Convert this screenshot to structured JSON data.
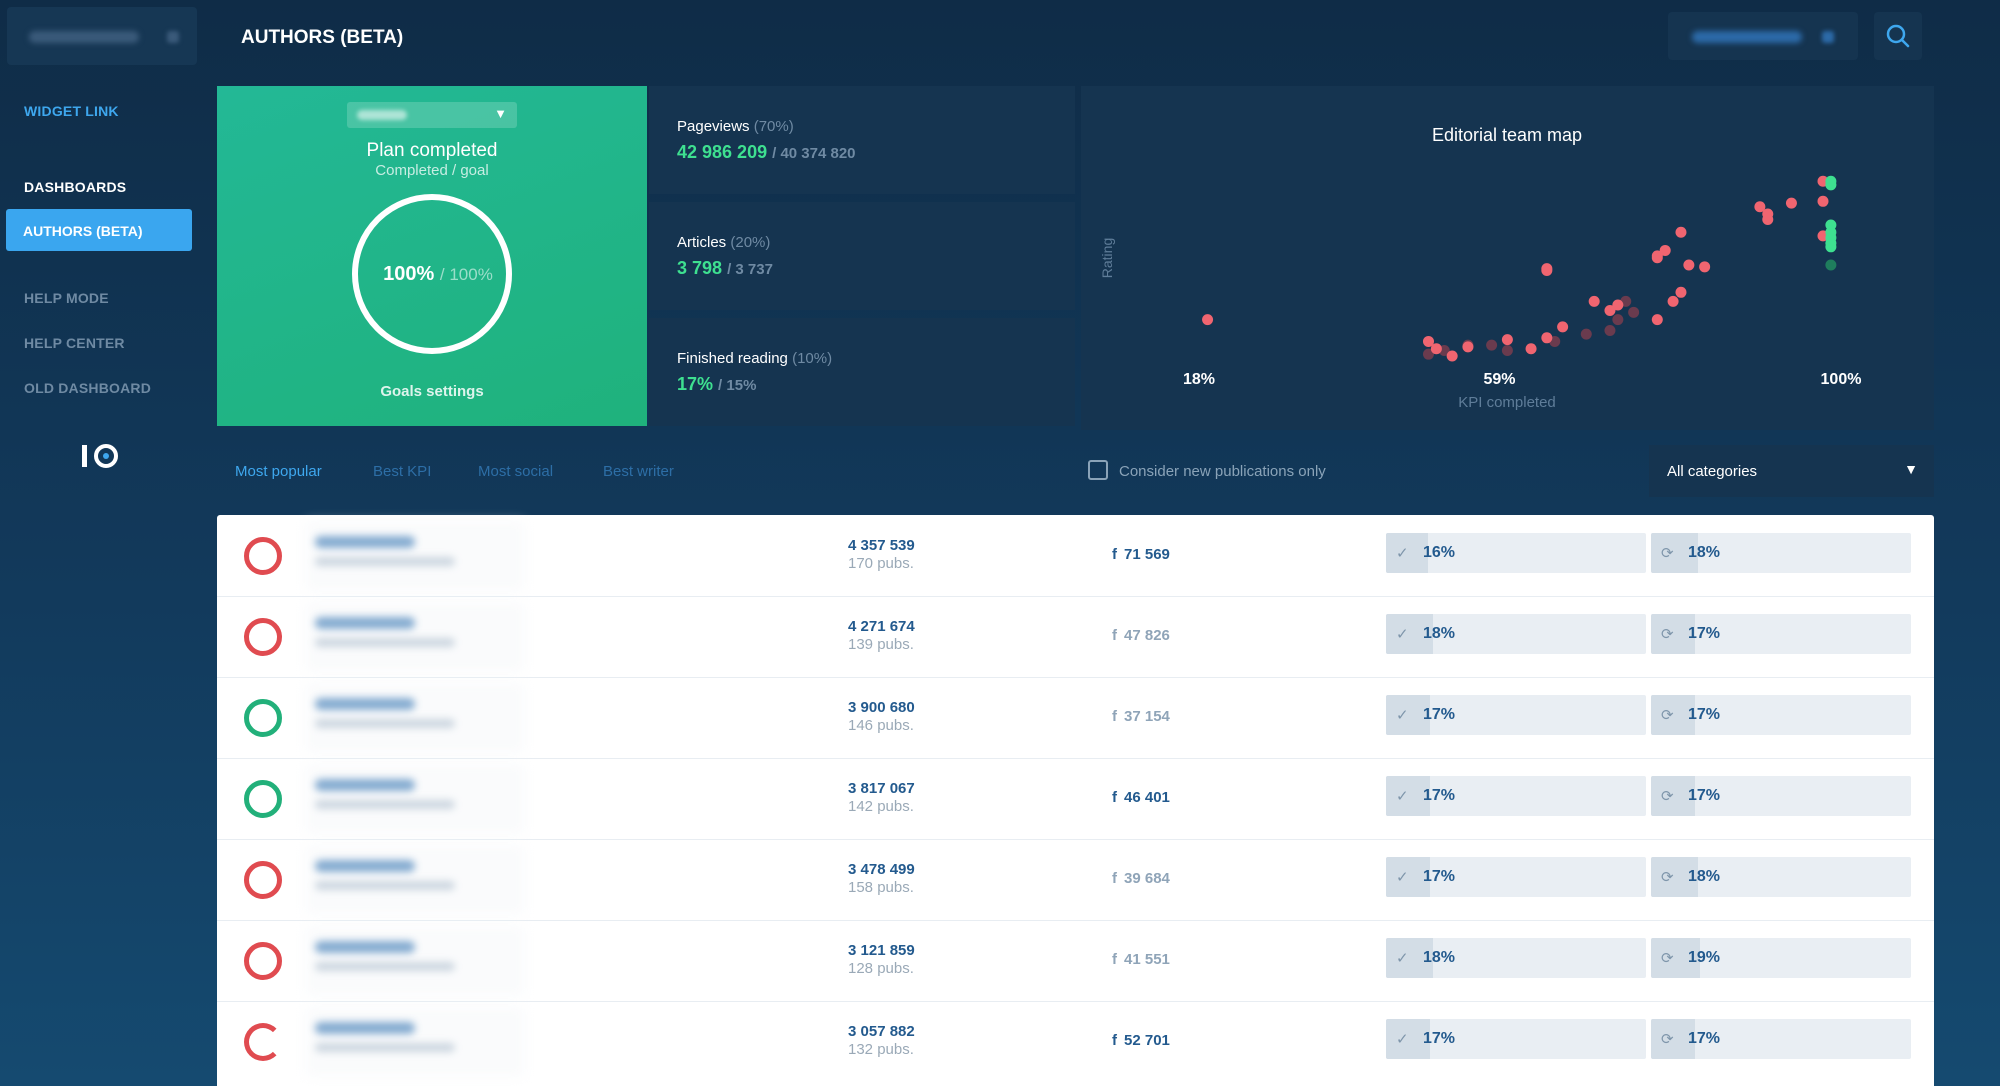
{
  "sidebar": {
    "widget_link": "WIDGET LINK",
    "dashboards": "DASHBOARDS",
    "active_item": "AUTHORS (BETA)",
    "help_mode": "HELP MODE",
    "help_center": "HELP CENTER",
    "old_dashboard": "OLD DASHBOARD",
    "logo_icon": "io-logo-icon"
  },
  "header": {
    "title": "AUTHORS (BETA)",
    "search_icon": "search-icon"
  },
  "plan": {
    "title": "Plan completed",
    "subtitle": "Completed / goal",
    "completed": "100%",
    "goal": "/ 100%",
    "completed_fraction": 1.0,
    "settings_link": "Goals settings"
  },
  "metrics": [
    {
      "label": "Pageviews",
      "weight": "(70%)",
      "value": "42 986 209",
      "goal": "/ 40 374 820"
    },
    {
      "label": "Articles",
      "weight": "(20%)",
      "value": "3 798",
      "goal": "/ 3 737"
    },
    {
      "label": "Finished reading",
      "weight": "(10%)",
      "value": "17%",
      "goal": "/ 15%"
    }
  ],
  "chart_data": {
    "type": "scatter",
    "title": "Editorial team map",
    "xlabel": "KPI completed",
    "ylabel": "Rating",
    "x_ticks": [
      "18%",
      "59%",
      "100%"
    ],
    "xlim": [
      18,
      100
    ],
    "ylim": [
      0,
      100
    ],
    "series": [
      {
        "color": "#f06570",
        "points": [
          [
            100,
            96
          ],
          [
            100,
            85
          ],
          [
            100,
            66
          ],
          [
            92,
            82
          ],
          [
            93,
            78
          ],
          [
            96,
            84
          ],
          [
            93,
            75
          ],
          [
            82,
            68
          ],
          [
            80,
            58
          ],
          [
            79,
            55
          ],
          [
            79,
            54
          ],
          [
            83,
            50
          ],
          [
            85,
            49
          ],
          [
            79,
            20
          ],
          [
            81,
            30
          ],
          [
            82,
            35
          ],
          [
            65,
            47
          ],
          [
            65,
            48
          ],
          [
            71,
            30
          ],
          [
            74,
            28
          ],
          [
            63,
            4
          ],
          [
            65,
            10
          ],
          [
            67,
            16
          ],
          [
            73,
            25
          ],
          [
            55,
            5
          ],
          [
            22,
            20
          ],
          [
            50,
            8
          ],
          [
            53,
            0
          ],
          [
            51,
            4
          ],
          [
            60,
            9
          ]
        ],
        "dim_points": [
          [
            50,
            1
          ],
          [
            52,
            3
          ],
          [
            55,
            6
          ],
          [
            60,
            3
          ],
          [
            58,
            6
          ],
          [
            66,
            8
          ],
          [
            70,
            12
          ],
          [
            73,
            14
          ],
          [
            74,
            20
          ],
          [
            76,
            24
          ],
          [
            75,
            30
          ]
        ]
      },
      {
        "color": "#3ee090",
        "points": [
          [
            101,
            96
          ],
          [
            101,
            94
          ],
          [
            101,
            72
          ],
          [
            101,
            68
          ],
          [
            101,
            65
          ],
          [
            101,
            62
          ],
          [
            101,
            60
          ]
        ],
        "dim_points": [
          [
            101,
            50
          ]
        ]
      }
    ]
  },
  "tabs": [
    "Most popular",
    "Best KPI",
    "Most social",
    "Best writer"
  ],
  "filter": {
    "checkbox_label": "Consider new publications only",
    "category": "All categories"
  },
  "table": {
    "rows": [
      {
        "status": "red",
        "pageviews": "4 357 539",
        "pubs": "170 pubs.",
        "facebook": "71 569",
        "fb_dim": false,
        "kpi": "16%",
        "kpi_value": 0.16,
        "read": "18%",
        "read_value": 0.18
      },
      {
        "status": "red",
        "pageviews": "4 271 674",
        "pubs": "139 pubs.",
        "facebook": "47 826",
        "fb_dim": true,
        "kpi": "18%",
        "kpi_value": 0.18,
        "read": "17%",
        "read_value": 0.17
      },
      {
        "status": "green",
        "pageviews": "3 900 680",
        "pubs": "146 pubs.",
        "facebook": "37 154",
        "fb_dim": true,
        "kpi": "17%",
        "kpi_value": 0.17,
        "read": "17%",
        "read_value": 0.17
      },
      {
        "status": "green",
        "pageviews": "3 817 067",
        "pubs": "142 pubs.",
        "facebook": "46 401",
        "fb_dim": false,
        "kpi": "17%",
        "kpi_value": 0.17,
        "read": "17%",
        "read_value": 0.17
      },
      {
        "status": "red",
        "pageviews": "3 478 499",
        "pubs": "158 pubs.",
        "facebook": "39 684",
        "fb_dim": true,
        "kpi": "17%",
        "kpi_value": 0.17,
        "read": "18%",
        "read_value": 0.18
      },
      {
        "status": "red",
        "pageviews": "3 121 859",
        "pubs": "128 pubs.",
        "facebook": "41 551",
        "fb_dim": true,
        "kpi": "18%",
        "kpi_value": 0.18,
        "read": "19%",
        "read_value": 0.19
      },
      {
        "status": "partial",
        "pageviews": "3 057 882",
        "pubs": "132 pubs.",
        "facebook": "52 701",
        "fb_dim": false,
        "kpi": "17%",
        "kpi_value": 0.17,
        "read": "17%",
        "read_value": 0.17
      }
    ]
  },
  "colors": {
    "accent": "#3aa6ef",
    "green": "#22b07a",
    "red": "#e04b50",
    "card": "#153450"
  }
}
